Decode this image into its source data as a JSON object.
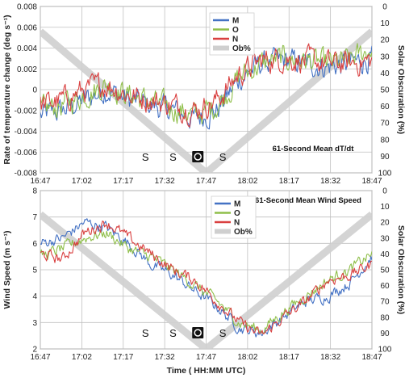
{
  "colors": {
    "M": "#4472c4",
    "O": "#8fbf4a",
    "N": "#d94040",
    "obscuration": "#cfcfcf",
    "grid": "#bfbfbf"
  },
  "chart_data": [
    {
      "type": "line",
      "annotation": "61-Second Mean dT/dt",
      "ylabel": "Rate of temperature change (deg s⁻¹)",
      "y2label": "Solar Obscuration (%)",
      "xlabel": "",
      "ylim": [
        -0.008,
        0.008
      ],
      "yticks": [
        "0.008",
        "0.006",
        "0.004",
        "0.002",
        "0",
        "-0.002",
        "-0.004",
        "-0.006",
        "-0.008"
      ],
      "y2lim": [
        100,
        0
      ],
      "y2ticks": [
        "0",
        "10",
        "20",
        "30",
        "40",
        "50",
        "60",
        "70",
        "80",
        "90",
        "100"
      ],
      "x_ticks": [
        "16:47",
        "17:02",
        "17:17",
        "17:32",
        "17:47",
        "18:02",
        "18:17",
        "18:32",
        "18:47"
      ],
      "legend_position": "top-center",
      "legend": [
        "M",
        "O",
        "N",
        "Ob%"
      ],
      "markers": [
        {
          "time": "17:25",
          "text": "S"
        },
        {
          "time": "17:35",
          "text": "S"
        },
        {
          "time": "17:44",
          "text": "O",
          "boxed": true
        },
        {
          "time": "17:53",
          "text": "S"
        }
      ],
      "series": [
        {
          "name": "M",
          "x": [
            "16:47",
            "16:55",
            "17:03",
            "17:11",
            "17:19",
            "17:27",
            "17:35",
            "17:43",
            "17:51",
            "17:59",
            "18:07",
            "18:15",
            "18:23",
            "18:31",
            "18:39",
            "18:47"
          ],
          "values": [
            -0.0025,
            -0.002,
            -0.001,
            0.0,
            -0.001,
            -0.0015,
            -0.002,
            -0.0028,
            -0.002,
            0.001,
            0.0025,
            0.0028,
            0.0025,
            0.0022,
            0.0025,
            0.003
          ]
        },
        {
          "name": "O",
          "x": [
            "16:47",
            "16:55",
            "17:03",
            "17:11",
            "17:19",
            "17:27",
            "17:35",
            "17:43",
            "17:51",
            "17:59",
            "18:07",
            "18:15",
            "18:23",
            "18:31",
            "18:39",
            "18:47"
          ],
          "values": [
            -0.002,
            -0.0015,
            -0.0005,
            0.0005,
            -0.0005,
            -0.0012,
            -0.0018,
            -0.0025,
            -0.0015,
            0.0012,
            0.0025,
            0.003,
            0.0028,
            0.0025,
            0.0028,
            0.004
          ]
        },
        {
          "name": "N",
          "x": [
            "16:47",
            "16:55",
            "17:03",
            "17:11",
            "17:19",
            "17:27",
            "17:35",
            "17:43",
            "17:51",
            "17:59",
            "18:07",
            "18:15",
            "18:23",
            "18:31",
            "18:39",
            "18:47"
          ],
          "values": [
            -0.0015,
            -0.001,
            0.0,
            0.0005,
            -0.0005,
            -0.001,
            -0.0015,
            -0.002,
            -0.001,
            0.0015,
            0.0028,
            0.003,
            0.0028,
            0.0025,
            0.0025,
            0.0028
          ]
        },
        {
          "name": "Ob%",
          "axis": "right",
          "x": [
            "16:47",
            "17:47",
            "18:47"
          ],
          "values": [
            15,
            100,
            15
          ]
        }
      ]
    },
    {
      "type": "line",
      "annotation": "61-Second Mean Wind Speed",
      "ylabel": "Wind Speed (m s⁻¹)",
      "y2label": "Solar Obscuration (%)",
      "xlabel": "Time ( HH:MM UTC)",
      "ylim": [
        2,
        8
      ],
      "yticks": [
        "8",
        "7",
        "6",
        "5",
        "4",
        "3",
        "2"
      ],
      "y2lim": [
        100,
        0
      ],
      "y2ticks": [
        "0",
        "10",
        "20",
        "30",
        "40",
        "50",
        "60",
        "70",
        "80",
        "90",
        "100"
      ],
      "x_ticks": [
        "16:47",
        "17:02",
        "17:17",
        "17:32",
        "17:47",
        "18:02",
        "18:17",
        "18:32",
        "18:47"
      ],
      "legend_position": "top-center",
      "legend": [
        "M",
        "O",
        "N",
        "Ob%"
      ],
      "markers": [
        {
          "time": "17:25",
          "text": "S"
        },
        {
          "time": "17:35",
          "text": "S"
        },
        {
          "time": "17:44",
          "text": "O",
          "boxed": true
        },
        {
          "time": "17:53",
          "text": "S"
        }
      ],
      "series": [
        {
          "name": "M",
          "x": [
            "16:47",
            "16:55",
            "17:03",
            "17:11",
            "17:19",
            "17:27",
            "17:35",
            "17:43",
            "17:51",
            "17:59",
            "18:07",
            "18:15",
            "18:23",
            "18:31",
            "18:39",
            "18:47"
          ],
          "values": [
            6.0,
            6.2,
            6.8,
            6.6,
            6.0,
            5.2,
            4.8,
            4.2,
            3.6,
            2.8,
            2.6,
            3.2,
            3.8,
            4.0,
            4.5,
            5.5
          ]
        },
        {
          "name": "O",
          "x": [
            "16:47",
            "16:55",
            "17:03",
            "17:11",
            "17:19",
            "17:27",
            "17:35",
            "17:43",
            "17:51",
            "17:59",
            "18:07",
            "18:15",
            "18:23",
            "18:31",
            "18:39",
            "18:47"
          ],
          "values": [
            5.5,
            5.8,
            6.2,
            6.4,
            5.8,
            5.5,
            5.0,
            4.4,
            3.8,
            3.0,
            2.7,
            3.4,
            4.0,
            4.6,
            5.0,
            5.6
          ]
        },
        {
          "name": "N",
          "x": [
            "16:47",
            "16:55",
            "17:03",
            "17:11",
            "17:19",
            "17:27",
            "17:35",
            "17:43",
            "17:51",
            "17:59",
            "18:07",
            "18:15",
            "18:23",
            "18:31",
            "18:39",
            "18:47"
          ],
          "values": [
            5.6,
            5.4,
            6.4,
            6.8,
            6.2,
            5.6,
            5.0,
            4.6,
            3.8,
            3.0,
            2.5,
            3.2,
            3.8,
            4.6,
            4.8,
            5.2
          ]
        },
        {
          "name": "Ob%",
          "axis": "right",
          "x": [
            "16:47",
            "17:47",
            "18:47"
          ],
          "values": [
            15,
            100,
            15
          ]
        }
      ]
    }
  ]
}
